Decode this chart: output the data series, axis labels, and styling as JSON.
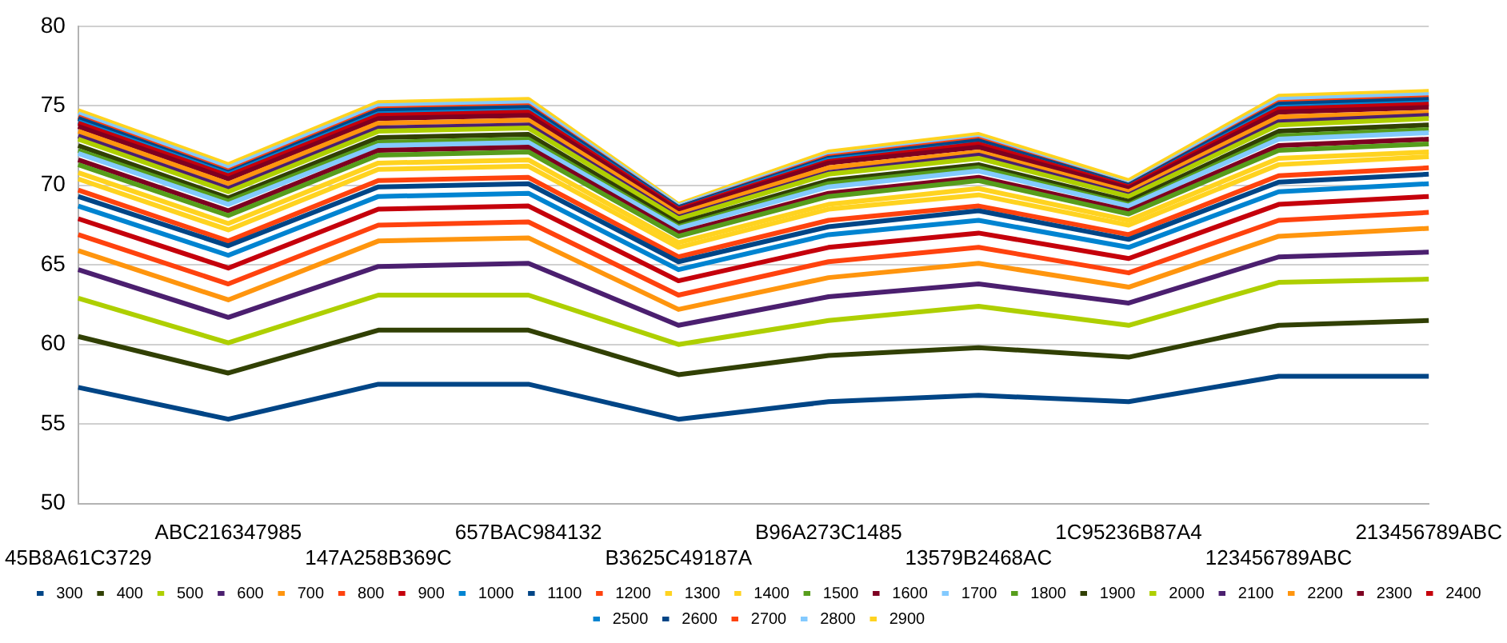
{
  "chart_data": {
    "type": "line",
    "categories": [
      "45B8A61C3729",
      "ABC216347985",
      "147A258B369C",
      "657BAC984132",
      "B3625C49187A",
      "B96A273C1485",
      "13579B2468AC",
      "1C95236B87A4",
      "123456789ABC",
      "213456789ABC"
    ],
    "ylim": [
      50,
      80
    ],
    "yticks": [
      50,
      55,
      60,
      65,
      70,
      75,
      80
    ],
    "grid": "y",
    "legend": "bottom",
    "marker": "none",
    "line_style": "solid",
    "series": [
      {
        "name": "300",
        "color": "#004586",
        "values": [
          57.3,
          55.3,
          57.5,
          57.5,
          55.3,
          56.4,
          56.8,
          56.4,
          58.0,
          58.0
        ]
      },
      {
        "name": "400",
        "color": "#314004",
        "values": [
          60.5,
          58.2,
          60.9,
          60.9,
          58.1,
          59.3,
          59.8,
          59.2,
          61.2,
          61.5
        ]
      },
      {
        "name": "500",
        "color": "#aecf00",
        "values": [
          62.9,
          60.1,
          63.1,
          63.1,
          60.0,
          61.5,
          62.4,
          61.2,
          63.9,
          64.1
        ]
      },
      {
        "name": "600",
        "color": "#4b1f6f",
        "values": [
          64.7,
          61.7,
          64.9,
          65.1,
          61.2,
          63.0,
          63.8,
          62.6,
          65.5,
          65.8
        ]
      },
      {
        "name": "700",
        "color": "#ff950e",
        "values": [
          65.9,
          62.8,
          66.5,
          66.7,
          62.2,
          64.2,
          65.1,
          63.6,
          66.8,
          67.3
        ]
      },
      {
        "name": "800",
        "color": "#ff420e",
        "values": [
          66.9,
          63.8,
          67.5,
          67.7,
          63.1,
          65.2,
          66.1,
          64.5,
          67.8,
          68.3
        ]
      },
      {
        "name": "900",
        "color": "#c5000b",
        "values": [
          67.9,
          64.8,
          68.5,
          68.7,
          64.0,
          66.1,
          67.0,
          65.4,
          68.8,
          69.3
        ]
      },
      {
        "name": "1000",
        "color": "#0084d1",
        "values": [
          68.7,
          65.6,
          69.3,
          69.5,
          64.7,
          66.9,
          67.8,
          66.1,
          69.6,
          70.1
        ]
      },
      {
        "name": "1100",
        "color": "#004586",
        "values": [
          69.3,
          66.2,
          69.9,
          70.1,
          65.2,
          67.4,
          68.4,
          66.6,
          70.2,
          70.7
        ]
      },
      {
        "name": "1200",
        "color": "#ff420e",
        "values": [
          69.7,
          66.5,
          70.3,
          70.5,
          65.5,
          67.8,
          68.7,
          66.9,
          70.6,
          71.1
        ]
      },
      {
        "name": "1300",
        "color": "#ffd320",
        "values": [
          70.4,
          67.2,
          71.0,
          71.2,
          66.1,
          68.5,
          69.4,
          67.5,
          71.3,
          71.8
        ]
      },
      {
        "name": "1400",
        "color": "#ffd320",
        "values": [
          70.8,
          67.6,
          71.4,
          71.6,
          66.4,
          68.8,
          69.8,
          67.8,
          71.7,
          72.1
        ]
      },
      {
        "name": "1500",
        "color": "#579d1c",
        "values": [
          71.3,
          68.1,
          71.9,
          72.1,
          66.8,
          69.3,
          70.3,
          68.2,
          72.2,
          72.6
        ]
      },
      {
        "name": "1600",
        "color": "#7e0021",
        "values": [
          71.6,
          68.4,
          72.2,
          72.4,
          67.0,
          69.5,
          70.5,
          68.4,
          72.5,
          72.9
        ]
      },
      {
        "name": "1700",
        "color": "#83caff",
        "values": [
          72.0,
          68.8,
          72.5,
          72.7,
          67.3,
          69.9,
          70.9,
          68.7,
          72.9,
          73.3
        ]
      },
      {
        "name": "1800",
        "color": "#579d1c",
        "values": [
          72.2,
          69.0,
          72.7,
          72.9,
          67.4,
          70.1,
          71.1,
          68.8,
          73.1,
          73.5
        ]
      },
      {
        "name": "1900",
        "color": "#314004",
        "values": [
          72.5,
          69.2,
          73.0,
          73.2,
          67.6,
          70.3,
          71.3,
          69.0,
          73.4,
          73.8
        ]
      },
      {
        "name": "2000",
        "color": "#aecf00",
        "values": [
          72.9,
          69.6,
          73.4,
          73.6,
          67.9,
          70.7,
          71.7,
          69.3,
          73.8,
          74.2
        ]
      },
      {
        "name": "2100",
        "color": "#4b1f6f",
        "values": [
          73.1,
          69.8,
          73.6,
          73.8,
          68.0,
          70.8,
          71.9,
          69.4,
          74.0,
          74.4
        ]
      },
      {
        "name": "2200",
        "color": "#ff950e",
        "values": [
          73.4,
          70.1,
          73.9,
          74.1,
          68.2,
          71.1,
          72.1,
          69.6,
          74.3,
          74.6
        ]
      },
      {
        "name": "2300",
        "color": "#7e0021",
        "values": [
          73.7,
          70.4,
          74.2,
          74.4,
          68.4,
          71.4,
          72.4,
          69.8,
          74.6,
          74.9
        ]
      },
      {
        "name": "2400",
        "color": "#c5000b",
        "values": [
          73.9,
          70.6,
          74.4,
          74.6,
          68.5,
          71.5,
          72.6,
          69.9,
          74.8,
          75.1
        ]
      },
      {
        "name": "2500",
        "color": "#0084d1",
        "values": [
          74.0,
          70.7,
          74.5,
          74.7,
          68.5,
          71.6,
          72.6,
          69.9,
          74.9,
          75.2
        ]
      },
      {
        "name": "2600",
        "color": "#004586",
        "values": [
          74.2,
          70.8,
          74.7,
          74.9,
          68.6,
          71.7,
          72.8,
          70.0,
          75.1,
          75.4
        ]
      },
      {
        "name": "2700",
        "color": "#ff420e",
        "values": [
          74.3,
          70.9,
          74.8,
          75.0,
          68.6,
          71.8,
          72.9,
          70.0,
          75.2,
          75.5
        ]
      },
      {
        "name": "2800",
        "color": "#83caff",
        "values": [
          74.5,
          71.1,
          75.0,
          75.2,
          68.7,
          71.9,
          73.0,
          70.1,
          75.4,
          75.7
        ]
      },
      {
        "name": "2900",
        "color": "#ffd320",
        "values": [
          74.7,
          71.3,
          75.2,
          75.4,
          68.8,
          72.1,
          73.2,
          70.3,
          75.6,
          75.9
        ]
      }
    ]
  }
}
